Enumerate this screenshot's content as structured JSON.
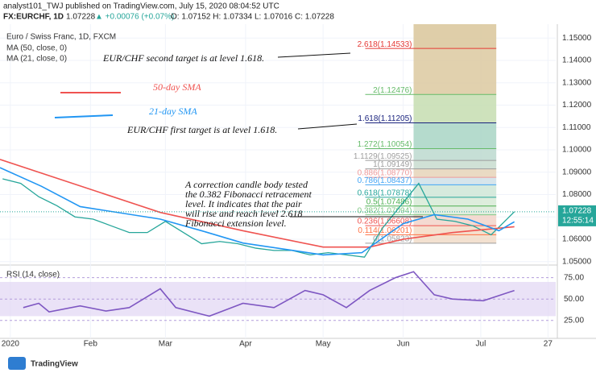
{
  "header": {
    "line1": "analyst101_TWJ published on TradingView.com, July 15, 2020 08:04:52 UTC",
    "symbol": "FX:EURCHF, 1D",
    "last": "1.07228",
    "change": "▲ +0.00076 (+0.07%)",
    "ohlc": "O: 1.07152 H: 1.07334 L: 1.07016 C: 1.07228",
    "brand": "TradingView"
  },
  "chart_data": [
    {
      "type": "line",
      "title": "Euro / Swiss Franc, 1D, FXCM",
      "annotations": [
        "EUR/CHF second target is at level 1.618.",
        "50-day SMA",
        "21-day SMA",
        "EUR/CHF first target is at level 1.618.",
        "A correction candle body tested",
        "the 0.382 Fibonacci retracement",
        "level. It indicates that the pair",
        "will rise and reach level 2.618",
        "Fibonacci extension level."
      ],
      "price_x": [
        -2,
        5,
        12,
        19,
        26,
        33,
        40,
        47,
        54,
        61,
        68,
        75,
        82,
        89,
        96,
        103,
        110,
        117,
        124,
        131,
        138,
        145,
        152,
        159,
        166,
        173,
        180,
        187,
        194,
        196
      ],
      "price": [
        1.087,
        1.085,
        1.079,
        1.075,
        1.07,
        1.069,
        1.066,
        1.063,
        1.063,
        1.068,
        1.063,
        1.058,
        1.059,
        1.058,
        1.056,
        1.055,
        1.055,
        1.053,
        1.054,
        1.053,
        1.052,
        1.065,
        1.075,
        1.085,
        1.069,
        1.068,
        1.066,
        1.062,
        1.07,
        1.0723
      ],
      "price_color": "#26a69a",
      "series": [
        {
          "name": "MA (50, close, 0)",
          "color": "#ef5350",
          "x": [
            -3,
            59,
            91,
            122,
            140,
            153,
            172,
            196
          ],
          "values": [
            1.0957,
            1.072,
            1.0638,
            1.0565,
            1.0565,
            1.06,
            1.063,
            1.0656
          ]
        },
        {
          "name": "MA (21, close, 0)",
          "color": "#2196f3",
          "x": [
            -3,
            13,
            28,
            59,
            75,
            91,
            122,
            137,
            153,
            165,
            178,
            190,
            196
          ],
          "values": [
            1.092,
            1.0837,
            1.0746,
            1.069,
            1.0638,
            1.0583,
            1.053,
            1.054,
            1.067,
            1.071,
            1.069,
            1.0638,
            1.0678
          ]
        }
      ],
      "fib_x": [
        157,
        189
      ],
      "fib_levels": [
        {
          "value": 1.14533,
          "label": "2.618(1.14533)",
          "color": "#e53935"
        },
        {
          "value": 1.12476,
          "label": "2(1.12476)",
          "color": "#66bb6a"
        },
        {
          "value": 1.11205,
          "label": "1.618(1.11205)",
          "color": "#1a237e"
        },
        {
          "value": 1.10054,
          "label": "1.272(1.10054)",
          "color": "#66bb6a"
        },
        {
          "value": 1.09525,
          "label": "1.1129(1.09525)",
          "color": "#9e9e9e"
        },
        {
          "value": 1.09149,
          "label": "1(1.09149)",
          "color": "#9e9e9e"
        },
        {
          "value": 1.0877,
          "label": "0.886(1.08770)",
          "color": "#ef9a9a"
        },
        {
          "value": 1.08437,
          "label": "0.786(1.08437)",
          "color": "#42a5f5"
        },
        {
          "value": 1.07878,
          "label": "0.618(1.07878)",
          "color": "#26a69a"
        },
        {
          "value": 1.07486,
          "label": "0.5(1.07486)",
          "color": "#4caf50"
        },
        {
          "value": 1.07094,
          "label": "0.382(1.07094)",
          "color": "#81c784"
        },
        {
          "value": 1.06608,
          "label": "0.236(1.06608)",
          "color": "#ef5350"
        },
        {
          "value": 1.06201,
          "label": "0.114(1.06201)",
          "color": "#ff7043"
        },
        {
          "value": 1.05823,
          "label": "0(1.05823)",
          "color": "#9e9e9e"
        }
      ],
      "fib_colors": [
        "#dcc9a0",
        "#c5ddb0",
        "#a8d5c4",
        "#bcd9cf",
        "#c8dccf",
        "#e6d3b8",
        "#cfe0e8",
        "#cfe6d7",
        "#d7ead6",
        "#dbead8",
        "#f2d3c9",
        "#f3dac6",
        "#f1dcc8"
      ],
      "last_price": {
        "value": 1.07228,
        "label": "1.07228"
      },
      "countdown": "12:55:14",
      "xlim": [
        -3,
        212
      ],
      "ylim": [
        1.0499,
        1.1562
      ],
      "yticks": [
        {
          "value": 1.05,
          "label": "1.05000"
        },
        {
          "value": 1.06,
          "label": "1.06000"
        },
        {
          "value": 1.07,
          "label": "1.07000"
        },
        {
          "value": 1.08,
          "label": "1.08000"
        },
        {
          "value": 1.09,
          "label": "1.09000"
        },
        {
          "value": 1.1,
          "label": "1.10000"
        },
        {
          "value": 1.11,
          "label": "1.11000"
        },
        {
          "value": 1.12,
          "label": "1.12000"
        },
        {
          "value": 1.13,
          "label": "1.13000"
        },
        {
          "value": 1.14,
          "label": "1.14000"
        },
        {
          "value": 1.15,
          "label": "1.15000"
        }
      ],
      "xticks": [
        {
          "value": 1,
          "label": "2020"
        },
        {
          "value": 32,
          "label": "Feb"
        },
        {
          "value": 61,
          "label": "Mar"
        },
        {
          "value": 92,
          "label": "Apr"
        },
        {
          "value": 122,
          "label": "May"
        },
        {
          "value": 153,
          "label": "Jun"
        },
        {
          "value": 183,
          "label": "Jul"
        },
        {
          "value": 209,
          "label": "27"
        }
      ]
    },
    {
      "type": "line",
      "title": "RSI (14, close)",
      "series": [
        {
          "color": "#7e57c2",
          "x": [
            6,
            12,
            16,
            28,
            38,
            47,
            59,
            65,
            78,
            91,
            103,
            115,
            122,
            131,
            140,
            150,
            157,
            165,
            172,
            184,
            196
          ],
          "values": [
            40,
            45,
            35,
            42,
            36,
            40,
            62,
            40,
            30,
            45,
            40,
            60,
            55,
            40,
            60,
            75,
            82,
            55,
            50,
            48,
            60
          ]
        }
      ],
      "band": [
        30,
        70
      ],
      "band_color": "#e1d5f3",
      "xlim": [
        -3,
        212
      ],
      "ylim": [
        4,
        86
      ],
      "yticks": [
        {
          "value": 25,
          "label": "25.00"
        },
        {
          "value": 50,
          "label": "50.00"
        },
        {
          "value": 75,
          "label": "75.00"
        }
      ]
    }
  ]
}
